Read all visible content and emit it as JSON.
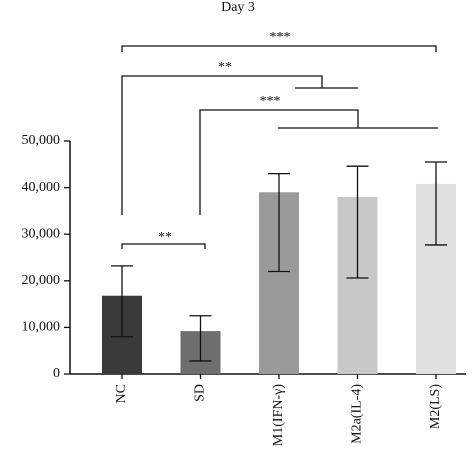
{
  "chart_data": {
    "type": "bar",
    "title": "Day 3",
    "categories": [
      "NC",
      "SD",
      "M1(IFN-γ)",
      "M2a(IL-4)",
      "M2(LS)"
    ],
    "values": [
      16800,
      9200,
      39000,
      38000,
      40800
    ],
    "error_minus": [
      8800,
      6400,
      17000,
      17400,
      13100
    ],
    "error_plus": [
      6400,
      3300,
      4000,
      6600,
      4700
    ],
    "colors": [
      "#3a3a3a",
      "#6e6e6e",
      "#9a9a9a",
      "#c8c8c8",
      "#e0e0e0"
    ],
    "ylim": [
      0,
      50000
    ],
    "yticks": [
      0,
      {
        "value": 10000,
        "label": "10,000"
      },
      {
        "value": 20000,
        "label": "20,000"
      },
      {
        "value": 30000,
        "label": "30,000"
      },
      {
        "value": 40000,
        "label": "40,000"
      },
      {
        "value": 50000,
        "label": "50,000"
      }
    ],
    "annotations": [
      "***",
      "**",
      "***",
      "**"
    ]
  }
}
